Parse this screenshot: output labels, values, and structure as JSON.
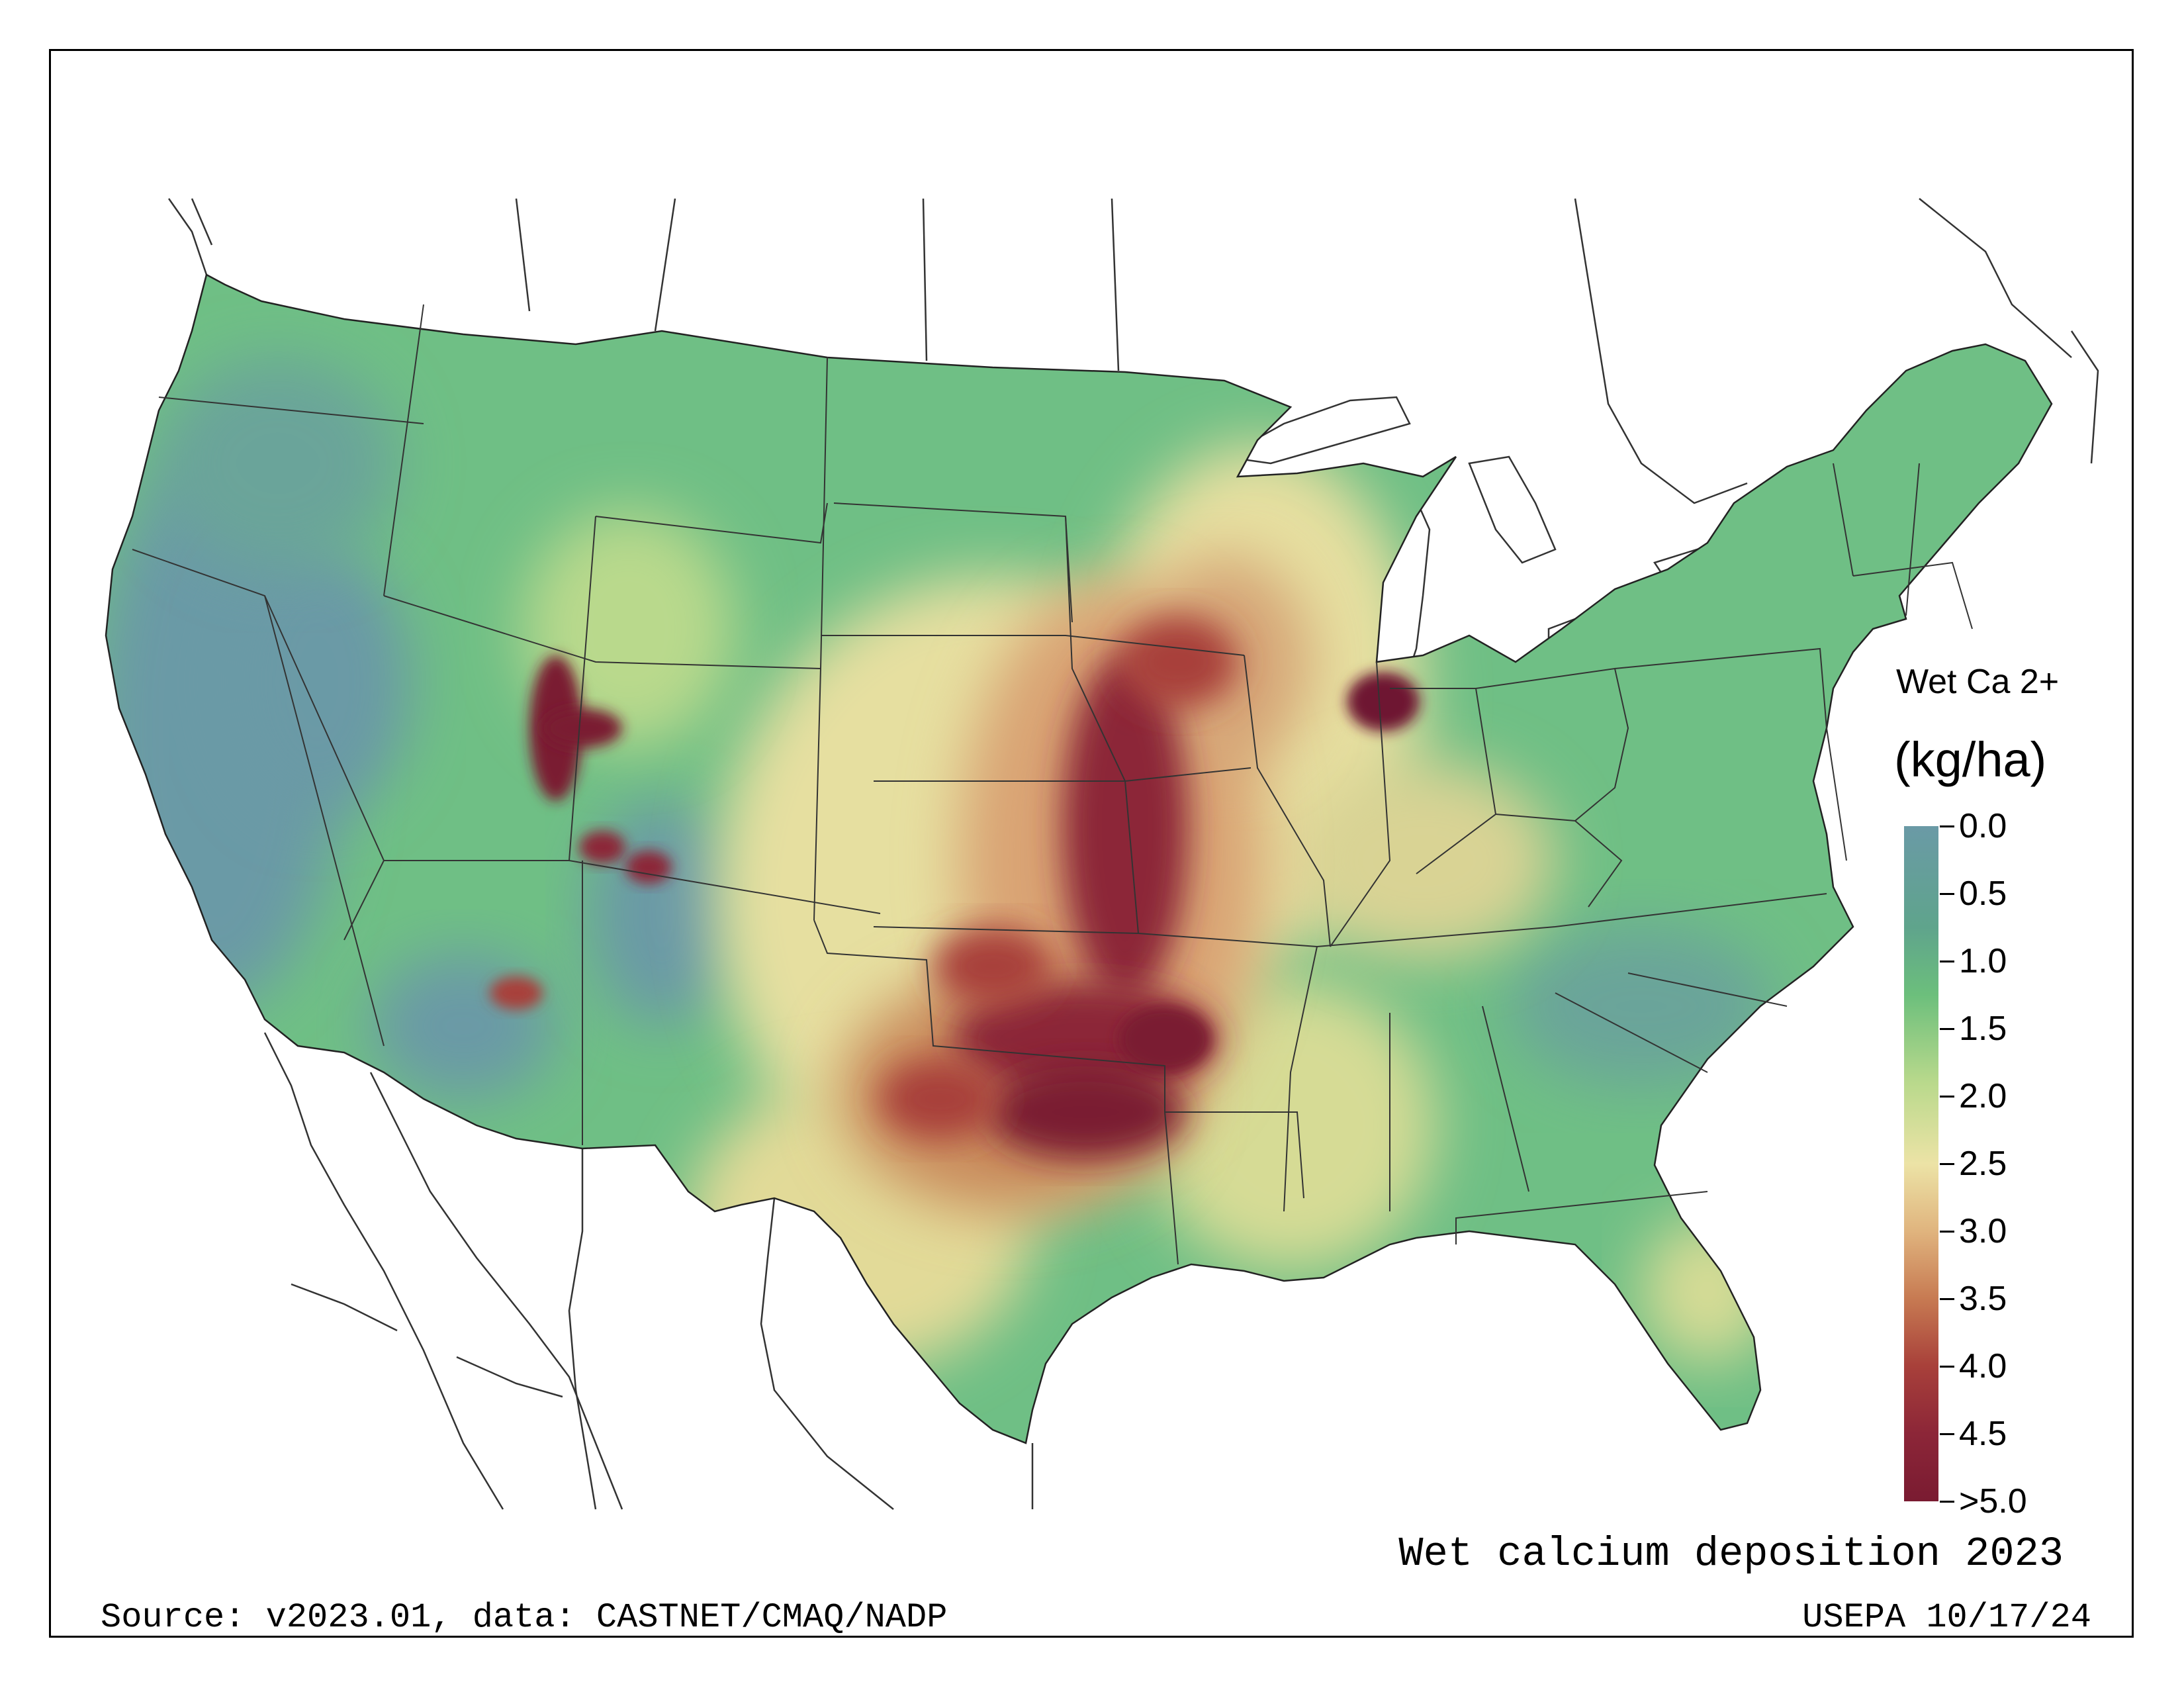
{
  "legend": {
    "title": "Wet Ca 2+",
    "unit": "(kg/ha)",
    "ticks": [
      "0.0",
      "0.5",
      "1.0",
      "1.5",
      "2.0",
      "2.5",
      "3.0",
      "3.5",
      "4.0",
      "4.5",
      ">5.0"
    ],
    "colors": [
      "#6a9aa6",
      "#5fa48c",
      "#6cbf7c",
      "#a9d384",
      "#e6dfa0",
      "#e3bf86",
      "#cf8a5a",
      "#b4513a",
      "#8c2236",
      "#7a1b31"
    ]
  },
  "caption": "Wet calcium deposition 2023",
  "source": "Source: v2023.01, data: CASTNET/CMAQ/NADP",
  "agency": "USEPA 10/17/24",
  "map": {
    "background_color": "#6fbf85",
    "high_color": "#7a1b31",
    "outside_color": "#ffffff"
  }
}
